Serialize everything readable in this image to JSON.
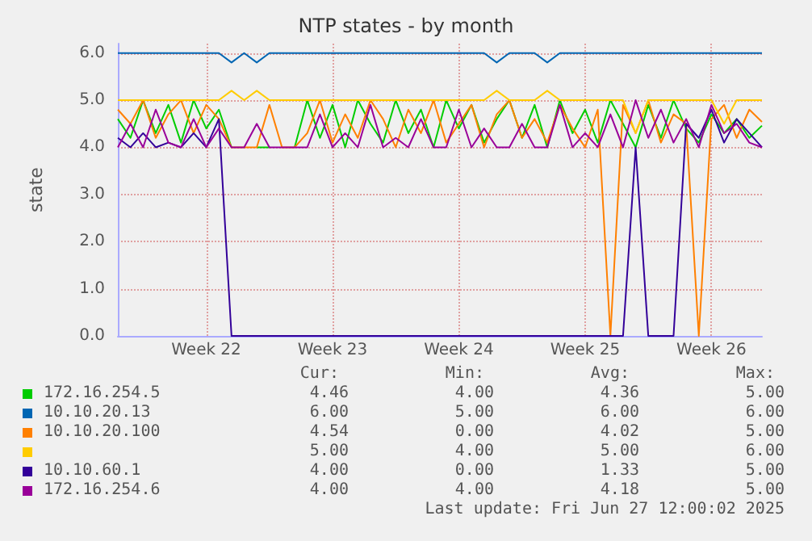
{
  "chart_data": {
    "type": "line",
    "title": "NTP states - by month",
    "ylabel": "state",
    "categories": [
      null,
      null,
      null,
      null,
      null,
      null,
      null,
      "Week 22",
      null,
      null,
      null,
      null,
      null,
      null,
      null,
      null,
      null,
      "Week 23",
      null,
      null,
      null,
      null,
      null,
      null,
      null,
      null,
      null,
      "Week 24",
      null,
      null,
      null,
      null,
      null,
      null,
      null,
      null,
      null,
      "Week 25",
      null,
      null,
      null,
      null,
      null,
      null,
      null,
      null,
      null,
      "Week 26",
      null,
      null,
      null,
      null
    ],
    "ylim": [
      0,
      6.2
    ],
    "yticks": [
      {
        "value": 0,
        "label": "0.0"
      },
      {
        "value": 1,
        "label": "1.0"
      },
      {
        "value": 2,
        "label": "2.0"
      },
      {
        "value": 3,
        "label": "3.0"
      },
      {
        "value": 4,
        "label": "4.0"
      },
      {
        "value": 5,
        "label": "5.0"
      },
      {
        "value": 6,
        "label": "6.0"
      }
    ],
    "grid": true,
    "legend": "bottom",
    "marker": "none",
    "line_style": "solid",
    "series": [
      {
        "name": "172.16.254.5",
        "color": "#00cc00",
        "values": [
          4.6,
          4.2,
          5,
          4.3,
          4.9,
          4.1,
          5,
          4.4,
          4.8,
          4,
          null,
          4,
          4,
          null,
          4,
          5,
          4.2,
          4.9,
          4,
          5,
          4.5,
          4.1,
          5,
          4.3,
          4.8,
          4,
          5,
          4.4,
          4.9,
          4.1,
          4.6,
          5,
          4.2,
          4.9,
          4,
          5,
          4.3,
          4.8,
          4.1,
          5,
          4.5,
          4,
          4.9,
          4.2,
          5,
          4.4,
          4.1,
          4.7,
          4.3,
          4.6,
          4.2,
          4.46
        ]
      },
      {
        "name": "10.10.20.13",
        "color": "#0066b3",
        "values": [
          6,
          6,
          6,
          6,
          6,
          6,
          6,
          6,
          6,
          5.8,
          6,
          5.8,
          6,
          6,
          6,
          6,
          6,
          6,
          6,
          6,
          6,
          6,
          6,
          6,
          6,
          6,
          6,
          6,
          6,
          6,
          5.8,
          6,
          6,
          6,
          5.8,
          6,
          6,
          6,
          6,
          6,
          6,
          6,
          6,
          6,
          6,
          6,
          6,
          6,
          6,
          6,
          6,
          6
        ]
      },
      {
        "name": "10.10.20.100",
        "color": "#ff8000",
        "values": [
          4.8,
          4.5,
          5,
          4.2,
          4.7,
          5,
          4.3,
          4.9,
          4.6,
          4,
          4,
          4,
          4.9,
          4,
          4,
          4.3,
          5,
          4.1,
          4.7,
          4.2,
          5,
          4.6,
          4,
          4.8,
          4.3,
          5,
          4.1,
          4.5,
          4.9,
          4,
          4.7,
          5,
          4.2,
          4.6,
          4.1,
          4.9,
          4.4,
          4,
          4.8,
          0,
          4.9,
          4.3,
          5,
          4.1,
          4.7,
          4.5,
          0,
          4.6,
          4.9,
          4.2,
          4.8,
          4.54
        ]
      },
      {
        "color": "#ffcc00",
        "values": [
          5,
          5,
          5,
          5,
          5,
          5,
          5,
          5,
          5,
          5.2,
          5,
          5.2,
          5,
          5,
          5,
          5,
          5,
          5,
          5,
          5,
          5,
          5,
          5,
          5,
          5,
          5,
          5,
          5,
          5,
          5,
          5.2,
          5,
          5,
          5,
          5.2,
          5,
          5,
          5,
          5,
          5,
          5,
          4.3,
          5,
          5,
          5,
          5,
          5,
          5,
          4.5,
          5,
          5,
          5
        ]
      },
      {
        "name": "10.10.60.1",
        "color": "#330099",
        "values": [
          4.2,
          4,
          4.3,
          4,
          4.1,
          4,
          4.3,
          4,
          4.6,
          0,
          0,
          0,
          0,
          0,
          0,
          0,
          0,
          0,
          0,
          0,
          0,
          0,
          0,
          0,
          0,
          0,
          0,
          0,
          0,
          0,
          0,
          0,
          0,
          0,
          0,
          0,
          0,
          0,
          0,
          0,
          0,
          4,
          0,
          0,
          0,
          4.5,
          4.2,
          4.8,
          4.1,
          4.6,
          4.3,
          4
        ]
      },
      {
        "name": "172.16.254.6",
        "color": "#990099",
        "values": [
          4,
          4.5,
          4,
          4.8,
          4.1,
          4,
          4.6,
          4,
          4.4,
          4,
          4,
          4.5,
          4,
          4,
          4,
          4,
          4.7,
          4,
          4.3,
          4,
          4.9,
          4,
          4.2,
          4,
          4.6,
          4,
          4,
          4.8,
          4,
          4.4,
          4,
          4,
          4.5,
          4,
          4,
          4.9,
          4,
          4.3,
          4,
          4.7,
          4,
          5,
          4.2,
          4.8,
          4.1,
          4.6,
          4,
          4.9,
          4.3,
          4.5,
          4.1,
          4
        ]
      }
    ],
    "annotations": [
      "Cur:",
      "Min:",
      "Avg:",
      "Max:",
      "4.46",
      "4.00",
      "4.36",
      "5.00",
      "6.00",
      "5.00",
      "6.00",
      "6.00",
      "4.54",
      "0.00",
      "4.02",
      "5.00",
      "5.00",
      "4.00",
      "5.00",
      "6.00",
      "4.00",
      "0.00",
      "1.33",
      "5.00",
      "4.00",
      "4.00",
      "4.18",
      "5.00",
      "Last update: Fri Jun 27 12:00:02 2025"
    ]
  }
}
